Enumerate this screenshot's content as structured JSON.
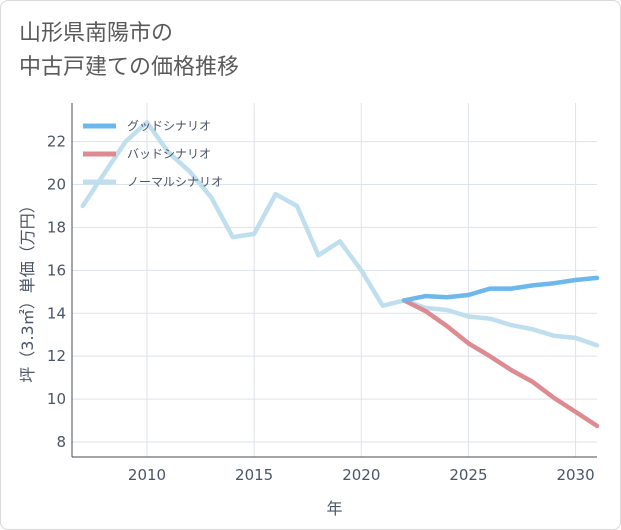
{
  "title_lines": [
    "山形県南陽市の",
    "中古戸建ての価格推移"
  ],
  "chart_data": {
    "type": "line",
    "title": "山形県南陽市の 中古戸建ての価格推移",
    "xlabel": "年",
    "ylabel": "坪（3.3㎡）単価（万円）",
    "xlim": [
      2006.5,
      2031
    ],
    "ylim": [
      7.3,
      23.8
    ],
    "x_ticks": [
      2010,
      2015,
      2020,
      2025,
      2030
    ],
    "y_ticks": [
      8,
      10,
      12,
      14,
      16,
      18,
      20,
      22
    ],
    "grid": true,
    "legend_position": "top-left",
    "series": [
      {
        "name": "グッドシナリオ",
        "color": "#6cb8ec",
        "x": [
          2022,
          2023,
          2024,
          2025,
          2026,
          2027,
          2028,
          2029,
          2030,
          2031
        ],
        "y": [
          14.6,
          14.8,
          14.75,
          14.85,
          15.15,
          15.15,
          15.3,
          15.4,
          15.55,
          15.65
        ]
      },
      {
        "name": "バッドシナリオ",
        "color": "#de8a91",
        "x": [
          2022,
          2023,
          2024,
          2025,
          2026,
          2027,
          2028,
          2029,
          2030,
          2031
        ],
        "y": [
          14.6,
          14.1,
          13.4,
          12.6,
          12.0,
          11.35,
          10.8,
          10.05,
          9.4,
          8.75
        ]
      },
      {
        "name": "ノーマルシナリオ",
        "color": "#bfdfee",
        "x": [
          2007,
          2008,
          2009,
          2010,
          2011,
          2012,
          2013,
          2014,
          2015,
          2016,
          2017,
          2018,
          2019,
          2020,
          2021,
          2022,
          2023,
          2024,
          2025,
          2026,
          2027,
          2028,
          2029,
          2030,
          2031
        ],
        "y": [
          19.0,
          20.5,
          22.0,
          22.9,
          21.5,
          20.6,
          19.4,
          17.55,
          17.7,
          19.55,
          19.0,
          16.7,
          17.35,
          16.0,
          14.35,
          14.6,
          14.25,
          14.15,
          13.85,
          13.75,
          13.45,
          13.25,
          12.95,
          12.85,
          12.5
        ]
      }
    ]
  }
}
